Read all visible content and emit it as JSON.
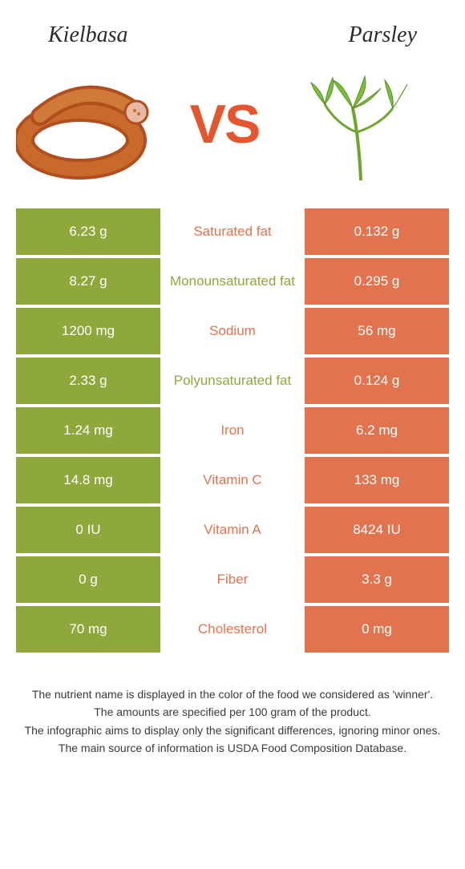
{
  "header": {
    "left_title": "Kielbasa",
    "right_title": "Parsley"
  },
  "vs_label": "VS",
  "colors": {
    "left_bg": "#8fa83c",
    "right_bg": "#e2734f",
    "left_text": "#8fa83c",
    "right_text": "#e2734f",
    "vs_text": "#e4572e",
    "white": "#ffffff"
  },
  "table": {
    "rows": [
      {
        "left": "6.23 g",
        "label": "Saturated fat",
        "right": "0.132 g",
        "winner": "right"
      },
      {
        "left": "8.27 g",
        "label": "Monounsaturated fat",
        "right": "0.295 g",
        "winner": "left"
      },
      {
        "left": "1200 mg",
        "label": "Sodium",
        "right": "56 mg",
        "winner": "right"
      },
      {
        "left": "2.33 g",
        "label": "Polyunsaturated fat",
        "right": "0.124 g",
        "winner": "left"
      },
      {
        "left": "1.24 mg",
        "label": "Iron",
        "right": "6.2 mg",
        "winner": "right"
      },
      {
        "left": "14.8 mg",
        "label": "Vitamin C",
        "right": "133 mg",
        "winner": "right"
      },
      {
        "left": "0 IU",
        "label": "Vitamin A",
        "right": "8424 IU",
        "winner": "right"
      },
      {
        "left": "0 g",
        "label": "Fiber",
        "right": "3.3 g",
        "winner": "right"
      },
      {
        "left": "70 mg",
        "label": "Cholesterol",
        "right": "0 mg",
        "winner": "right"
      }
    ]
  },
  "footer": {
    "line1": "The nutrient name is displayed in the color of the food we considered as 'winner'.",
    "line2": "The amounts are specified per 100 gram of the product.",
    "line3": "The infographic aims to display only the significant differences, ignoring minor ones.",
    "line4": "The main source of information is USDA Food Composition Database."
  }
}
